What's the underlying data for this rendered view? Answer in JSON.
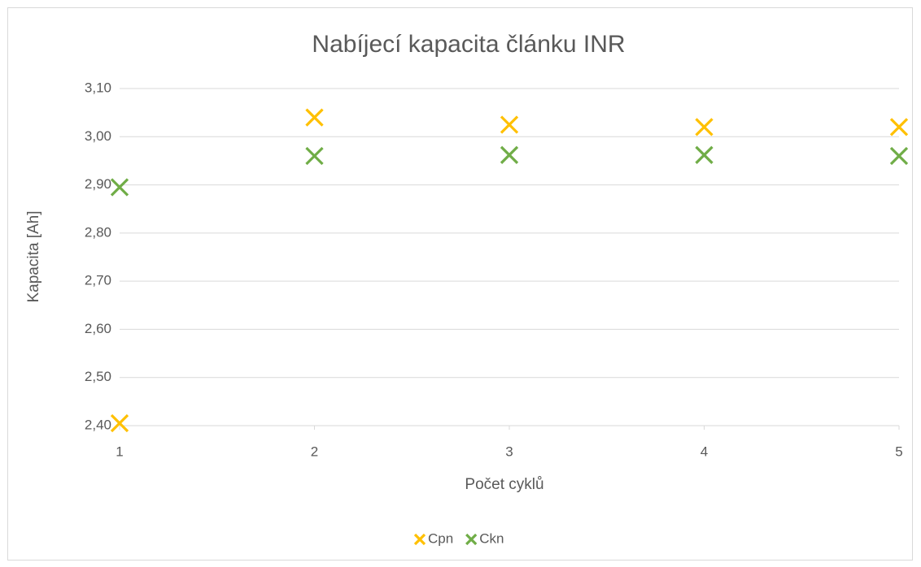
{
  "chart_data": {
    "type": "scatter",
    "title": "Nabíjecí kapacita článku INR",
    "x_label": "Počet cyklů",
    "y_label": "Kapacita [Ah]",
    "x": [
      1,
      2,
      3,
      4,
      5
    ],
    "series": [
      {
        "name": "Cpn",
        "color": "#ffc000",
        "values": [
          2.405,
          3.04,
          3.025,
          3.02,
          3.02
        ]
      },
      {
        "name": "Ckn",
        "color": "#70ad47",
        "values": [
          2.895,
          2.96,
          2.962,
          2.962,
          2.96
        ]
      }
    ],
    "xlim": [
      1,
      5
    ],
    "xticks": [
      1,
      2,
      3,
      4,
      5
    ],
    "ylim": [
      2.4,
      3.1
    ],
    "yticks": [
      {
        "value": 2.4,
        "label": "2,40"
      },
      {
        "value": 2.5,
        "label": "2,50"
      },
      {
        "value": 2.6,
        "label": "2,60"
      },
      {
        "value": 2.7,
        "label": "2,70"
      },
      {
        "value": 2.8,
        "label": "2,80"
      },
      {
        "value": 2.9,
        "label": "2,90"
      },
      {
        "value": 3.0,
        "label": "3,00"
      },
      {
        "value": 3.1,
        "label": "3,10"
      }
    ],
    "grid": true,
    "legend": "bottom"
  }
}
